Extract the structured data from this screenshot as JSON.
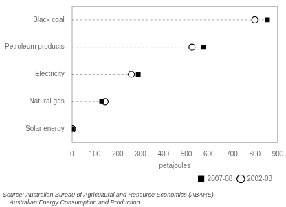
{
  "chart_data": {
    "type": "dot",
    "categories": [
      "Solar energy",
      "Natural gas",
      "Electricity",
      "Petroleum products",
      "Black coal"
    ],
    "series": [
      {
        "name": "2007-08",
        "color": "#000000",
        "marker": "square",
        "values": [
          2,
          130,
          290,
          575,
          855
        ]
      },
      {
        "name": "2002-03",
        "color": "#000000",
        "marker": "circle",
        "values": [
          2,
          145,
          260,
          525,
          800
        ]
      }
    ],
    "xlabel": "petajoules",
    "xlim": [
      0,
      900
    ],
    "xticks": [
      0,
      100,
      200,
      300,
      400,
      500,
      600,
      700,
      800,
      900
    ],
    "grid": false,
    "legend": "lower right",
    "annotations": [
      "Source: Australian Bureau of Agricultural and Resource Economics (ABARE),",
      "    Australian Energy Consumption and Production."
    ]
  }
}
